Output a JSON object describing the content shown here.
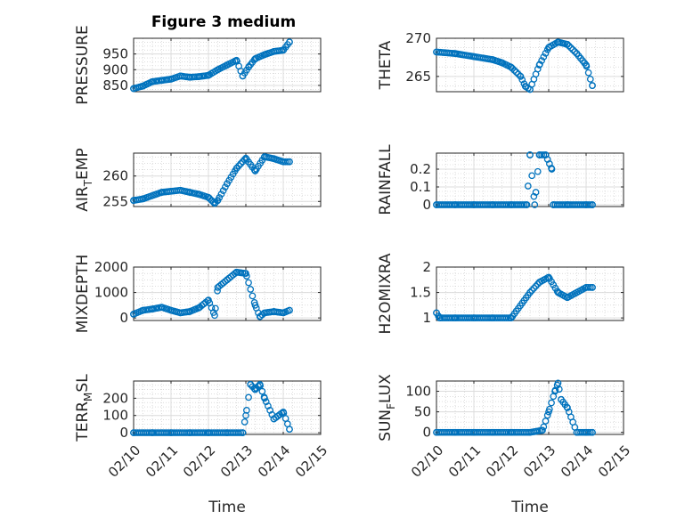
{
  "figure": {
    "title": "Figure 3 medium"
  },
  "colors": {
    "marker": "#0072BD",
    "axis": "#262626",
    "grid": "#dcdcdc"
  },
  "chart_data": [
    {
      "type": "scatter",
      "ylabel": "PRESSURE",
      "xlabel": "",
      "ylim": [
        830,
        1000
      ],
      "yticks": [
        850,
        900,
        950
      ],
      "xticklabels": [],
      "grid": true,
      "marker": "circle",
      "x": [
        "02/10 00:00",
        "02/10 06:00",
        "02/10 12:00",
        "02/10 18:00",
        "02/11 00:00",
        "02/11 06:00",
        "02/11 12:00",
        "02/11 18:00",
        "02/12 00:00",
        "02/12 06:00",
        "02/12 12:00",
        "02/12 18:00",
        "02/12 22:00",
        "02/13 02:00",
        "02/13 06:00",
        "02/13 12:00",
        "02/13 18:00",
        "02/14 00:00",
        "02/14 04:00"
      ],
      "y": [
        840,
        848,
        862,
        866,
        870,
        880,
        876,
        878,
        882,
        900,
        915,
        930,
        880,
        910,
        935,
        948,
        958,
        962,
        988
      ]
    },
    {
      "type": "scatter",
      "ylabel": "THETA",
      "xlabel": "",
      "ylim": [
        263,
        270
      ],
      "yticks": [
        265,
        270
      ],
      "xticklabels": [],
      "grid": true,
      "marker": "circle",
      "x": [
        "02/10 00:00",
        "02/10 12:00",
        "02/11 00:00",
        "02/11 12:00",
        "02/11 18:00",
        "02/12 00:00",
        "02/12 06:00",
        "02/12 09:00",
        "02/12 12:00",
        "02/12 18:00",
        "02/13 00:00",
        "02/13 06:00",
        "02/13 12:00",
        "02/13 18:00",
        "02/14 00:00",
        "02/14 04:00"
      ],
      "y": [
        268.2,
        268.0,
        267.6,
        267.2,
        266.8,
        266.2,
        265.0,
        263.7,
        263.3,
        266.5,
        268.8,
        269.5,
        269.2,
        268.0,
        266.5,
        263.8
      ]
    },
    {
      "type": "scatter",
      "ylabel": "AIR_TEMP",
      "xlabel": "",
      "ylim": [
        254,
        264.5
      ],
      "yticks": [
        255,
        260
      ],
      "xticklabels": [],
      "grid": true,
      "marker": "circle",
      "x": [
        "02/10 00:00",
        "02/10 06:00",
        "02/10 18:00",
        "02/11 06:00",
        "02/11 12:00",
        "02/11 18:00",
        "02/12 00:00",
        "02/12 04:00",
        "02/12 06:00",
        "02/12 12:00",
        "02/12 18:00",
        "02/13 00:00",
        "02/13 06:00",
        "02/13 12:00",
        "02/13 18:00",
        "02/14 00:00",
        "02/14 04:00"
      ],
      "y": [
        255.2,
        255.5,
        256.8,
        257.2,
        256.8,
        256.4,
        255.8,
        254.6,
        255.2,
        258.5,
        261.5,
        263.5,
        261.0,
        263.8,
        263.4,
        262.8,
        262.8
      ]
    },
    {
      "type": "scatter",
      "ylabel": "RAINFALL",
      "xlabel": "",
      "ylim": [
        -0.01,
        0.29
      ],
      "yticks": [
        0,
        0.1,
        0.2
      ],
      "xticklabels": [],
      "grid": true,
      "marker": "circle",
      "x": [
        "02/10 00:00",
        "02/10 12:00",
        "02/11 00:00",
        "02/11 12:00",
        "02/12 00:00",
        "02/12 10:00",
        "02/12 12:00",
        "02/12 15:00",
        "02/12 18:00",
        "02/12 22:00",
        "02/13 02:00",
        "02/13 03:00",
        "02/13 12:00",
        "02/14 00:00",
        "02/14 04:00"
      ],
      "y": [
        0,
        0,
        0,
        0,
        0,
        0,
        0.28,
        0,
        0.28,
        0.28,
        0.2,
        0,
        0,
        0,
        0
      ]
    },
    {
      "type": "scatter",
      "ylabel": "MIXDEPTH",
      "xlabel": "",
      "ylim": [
        -100,
        2000
      ],
      "yticks": [
        0,
        1000,
        2000
      ],
      "xticklabels": [],
      "grid": true,
      "marker": "circle",
      "x": [
        "02/10 00:00",
        "02/10 06:00",
        "02/10 12:00",
        "02/10 18:00",
        "02/11 00:00",
        "02/11 06:00",
        "02/11 12:00",
        "02/11 18:00",
        "02/12 00:00",
        "02/12 04:00",
        "02/12 06:00",
        "02/12 12:00",
        "02/12 18:00",
        "02/13 00:00",
        "02/13 06:00",
        "02/13 09:00",
        "02/13 12:00",
        "02/13 18:00",
        "02/14 00:00",
        "02/14 04:00"
      ],
      "y": [
        150,
        300,
        350,
        420,
        300,
        200,
        250,
        400,
        700,
        100,
        1200,
        1500,
        1800,
        1750,
        500,
        50,
        200,
        250,
        200,
        300
      ]
    },
    {
      "type": "scatter",
      "ylabel": "H2OMIXRA",
      "xlabel": "",
      "ylim": [
        0.95,
        2
      ],
      "yticks": [
        1,
        1.5,
        2
      ],
      "xticklabels": [],
      "grid": true,
      "marker": "circle",
      "x": [
        "02/10 00:00",
        "02/10 02:00",
        "02/10 12:00",
        "02/11 00:00",
        "02/11 12:00",
        "02/12 00:00",
        "02/12 12:00",
        "02/12 18:00",
        "02/13 00:00",
        "02/13 06:00",
        "02/13 12:00",
        "02/13 18:00",
        "02/14 00:00",
        "02/14 04:00"
      ],
      "y": [
        1.1,
        1.0,
        1.0,
        1.0,
        1.0,
        1.0,
        1.5,
        1.7,
        1.8,
        1.5,
        1.4,
        1.5,
        1.6,
        1.6
      ]
    },
    {
      "type": "scatter",
      "ylabel": "TERR_MSL",
      "xlabel": "Time",
      "ylim": [
        -10,
        300
      ],
      "yticks": [
        0,
        100,
        200
      ],
      "xticklabels": [
        "02/10",
        "02/11",
        "02/12",
        "02/13",
        "02/14",
        "02/15"
      ],
      "grid": true,
      "marker": "circle",
      "x": [
        "02/10 00:00",
        "02/10 12:00",
        "02/11 00:00",
        "02/11 12:00",
        "02/12 00:00",
        "02/12 12:00",
        "02/12 22:00",
        "02/13 00:00",
        "02/13 03:00",
        "02/13 06:00",
        "02/13 09:00",
        "02/13 12:00",
        "02/13 18:00",
        "02/14 00:00",
        "02/14 04:00"
      ],
      "y": [
        0,
        0,
        0,
        0,
        0,
        0,
        0,
        100,
        280,
        250,
        280,
        200,
        80,
        120,
        20
      ]
    },
    {
      "type": "scatter",
      "ylabel": "SUN_FLUX",
      "xlabel": "Time",
      "ylim": [
        -5,
        125
      ],
      "yticks": [
        0,
        50,
        100
      ],
      "xticklabels": [
        "02/10",
        "02/11",
        "02/12",
        "02/13",
        "02/14",
        "02/15"
      ],
      "grid": true,
      "marker": "circle",
      "x": [
        "02/10 00:00",
        "02/10 12:00",
        "02/11 00:00",
        "02/11 12:00",
        "02/12 00:00",
        "02/12 12:00",
        "02/12 20:00",
        "02/13 00:00",
        "02/13 04:00",
        "02/13 06:00",
        "02/13 08:00",
        "02/13 12:00",
        "02/13 18:00",
        "02/14 00:00",
        "02/14 04:00"
      ],
      "y": [
        0,
        0,
        0,
        0,
        0,
        0,
        5,
        50,
        100,
        120,
        80,
        60,
        0,
        0,
        0
      ]
    }
  ]
}
